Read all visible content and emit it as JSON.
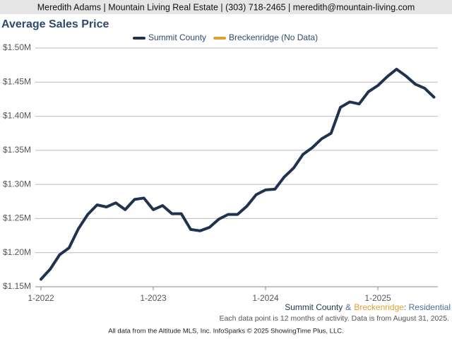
{
  "header": {
    "text": "Meredith Adams | Mountain Living Real Estate | (303) 718-2465 | meredith@mountain-living.com"
  },
  "chart_data": {
    "type": "line",
    "title": "Average Sales Price",
    "categories": [
      "1-2022",
      null,
      null,
      null,
      null,
      null,
      null,
      null,
      null,
      null,
      null,
      null,
      "1-2023",
      null,
      null,
      null,
      null,
      null,
      null,
      null,
      null,
      null,
      null,
      null,
      "1-2024",
      null,
      null,
      null,
      null,
      null,
      null,
      null,
      null,
      null,
      null,
      null,
      "1-2025",
      null,
      null,
      null,
      null,
      null,
      null
    ],
    "series": [
      {
        "name": "Summit County",
        "color": "#1f3350",
        "values": [
          1161000,
          1176000,
          1197000,
          1207000,
          1235000,
          1256000,
          1270000,
          1267000,
          1273000,
          1263000,
          1278000,
          1280000,
          1263000,
          1269000,
          1257000,
          1257000,
          1234000,
          1232000,
          1237000,
          1249000,
          1256000,
          1256000,
          1268000,
          1285000,
          1292000,
          1293000,
          1311000,
          1324000,
          1344000,
          1354000,
          1367000,
          1375000,
          1413000,
          1421000,
          1418000,
          1436000,
          1445000,
          1458000,
          1469000,
          1459000,
          1447000,
          1441000,
          1428000
        ]
      },
      {
        "name": "Breckenridge (No Data)",
        "color": "#e0a030",
        "values": [
          null,
          null,
          null,
          null,
          null,
          null,
          null,
          null,
          null,
          null,
          null,
          null,
          null,
          null,
          null,
          null,
          null,
          null,
          null,
          null,
          null,
          null,
          null,
          null,
          null,
          null,
          null,
          null,
          null,
          null,
          null,
          null,
          null,
          null,
          null,
          null,
          null,
          null,
          null,
          null,
          null,
          null,
          null
        ]
      }
    ],
    "ylim": [
      1150000,
      1500000
    ],
    "yticks": [
      {
        "value": 1150000,
        "label": "$1.15M"
      },
      {
        "value": 1200000,
        "label": "$1.20M"
      },
      {
        "value": 1250000,
        "label": "$1.25M"
      },
      {
        "value": 1300000,
        "label": "$1.30M"
      },
      {
        "value": 1350000,
        "label": "$1.35M"
      },
      {
        "value": 1400000,
        "label": "$1.40M"
      },
      {
        "value": 1450000,
        "label": "$1.45M"
      },
      {
        "value": 1500000,
        "label": "$1.50M"
      }
    ],
    "grid": true,
    "legend": "top"
  },
  "footer": {
    "region": [
      "Summit County",
      "&",
      "Breckenridge",
      ": Residential"
    ],
    "note": "Each data point is 12 months of activity. Data is from August 31, 2025.",
    "source": "All data from the Altitude MLS, Inc. InfoSparks © 2025 ShowingTime Plus, LLC."
  }
}
